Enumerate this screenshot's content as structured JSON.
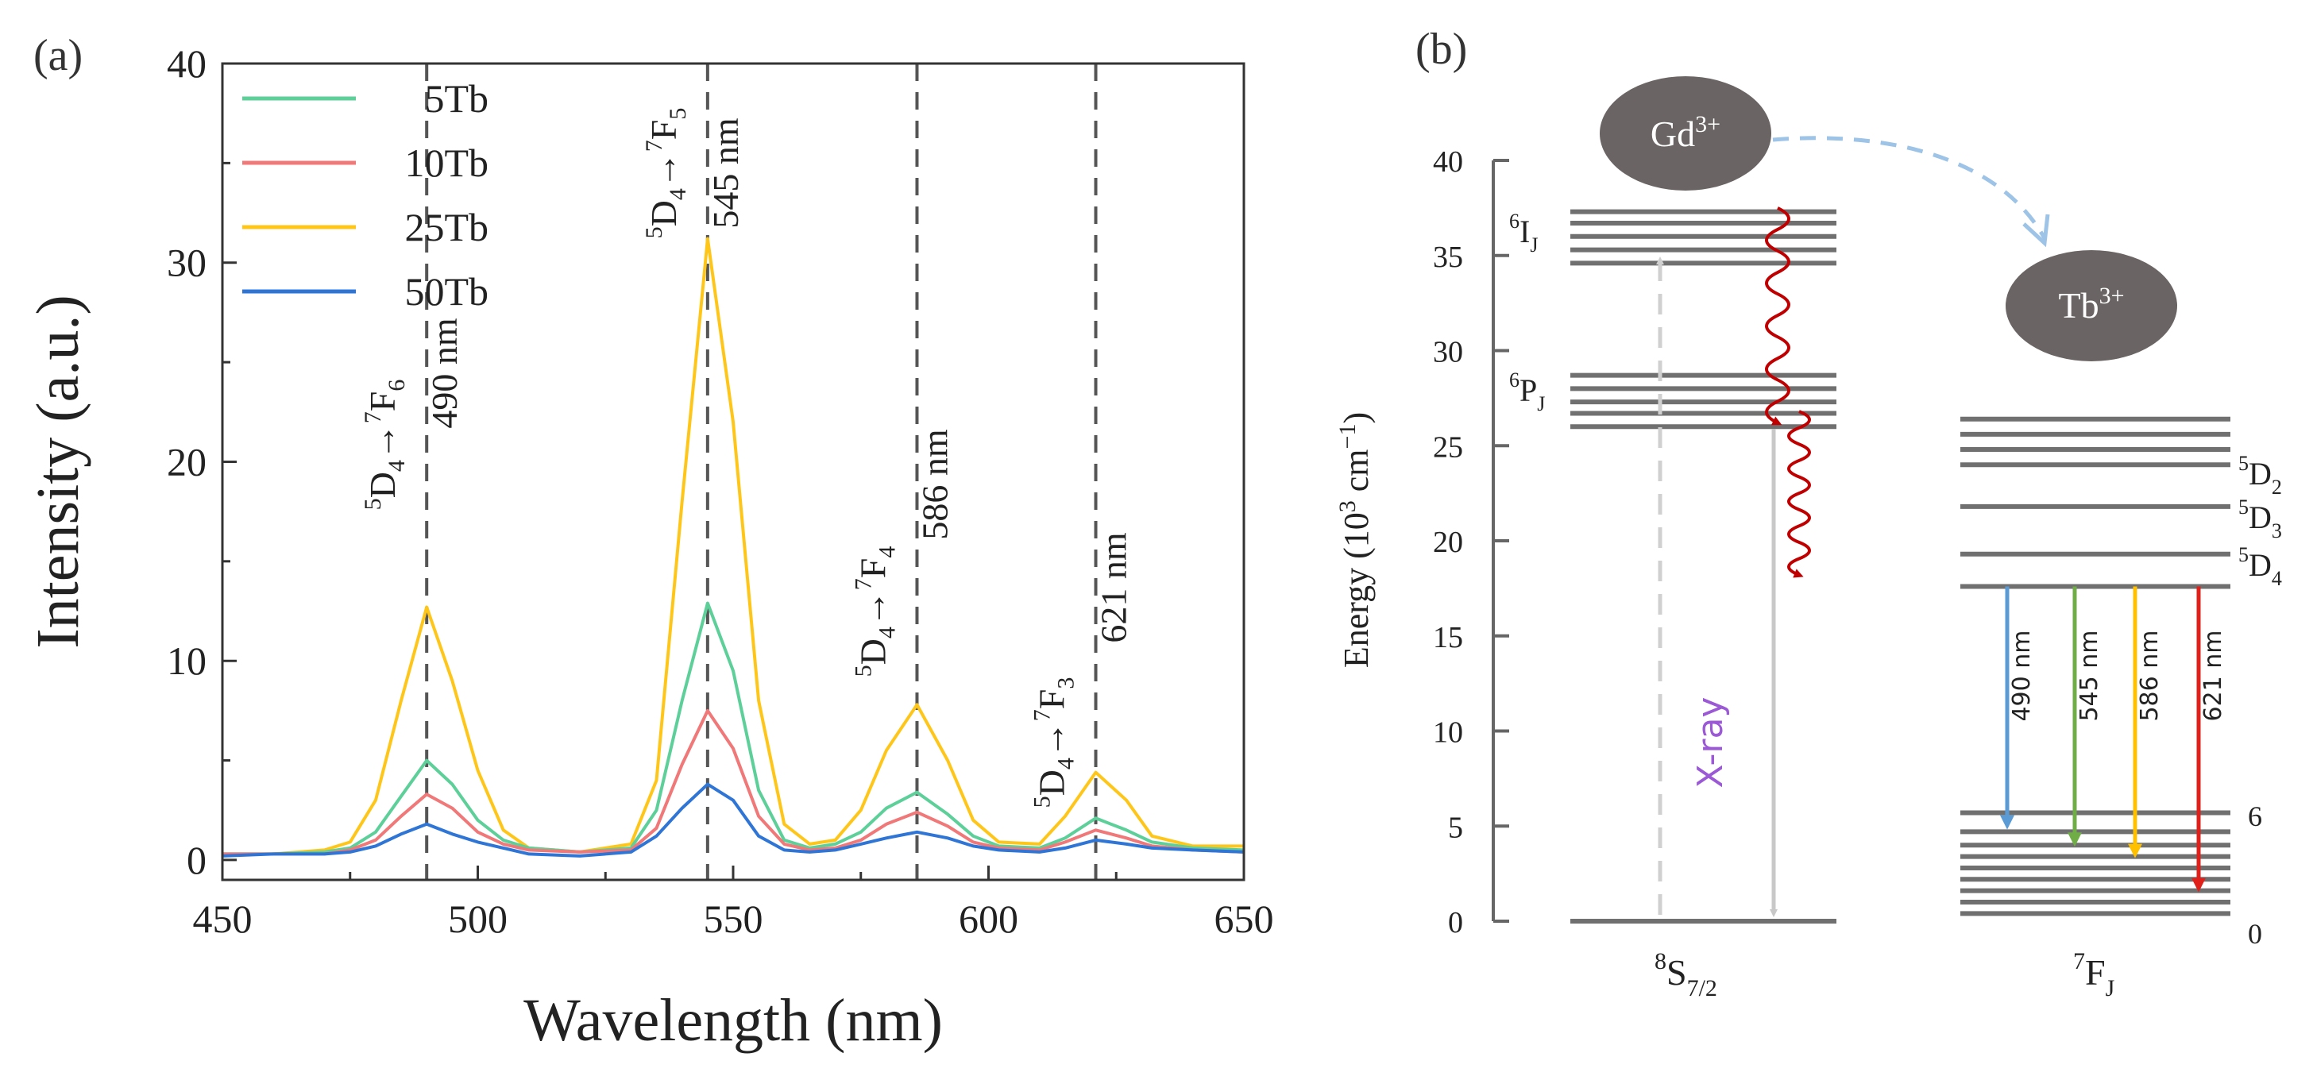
{
  "panel_a": {
    "label": "(a)",
    "legend": [
      "5Tb",
      "10Tb",
      "25Tb",
      "50Tb"
    ],
    "transitions": [
      {
        "wl": "490",
        "upper": "D",
        "upper_sup": "5",
        "upper_sub": "4",
        "lower": "F",
        "lower_sup": "7",
        "lower_sub": "6",
        "nm": "490 nm"
      },
      {
        "wl": "545",
        "upper": "D",
        "upper_sup": "5",
        "upper_sub": "4",
        "lower": "F",
        "lower_sup": "7",
        "lower_sub": "5",
        "nm": "545 nm"
      },
      {
        "wl": "586",
        "upper": "D",
        "upper_sup": "5",
        "upper_sub": "4",
        "lower": "F",
        "lower_sup": "7",
        "lower_sub": "4",
        "nm": "586 nm"
      },
      {
        "wl": "621",
        "upper": "D",
        "upper_sup": "5",
        "upper_sub": "4",
        "lower": "F",
        "lower_sup": "7",
        "lower_sub": "3",
        "nm": "621 nm"
      }
    ],
    "arrow_glyph": "→"
  },
  "panel_b": {
    "label": "(b)",
    "ylabel_main": "Energy (10",
    "ylabel_sup1": "3",
    "ylabel_mid": " cm",
    "ylabel_sup2": "−1",
    "ylabel_end": ")",
    "yticks": [
      "0",
      "5",
      "10",
      "15",
      "20",
      "25",
      "30",
      "35",
      "40"
    ],
    "gd": {
      "label": "Gd",
      "sup": "3+"
    },
    "tb": {
      "label": "Tb",
      "sup": "3+"
    },
    "gd_labels": {
      "I": {
        "sup": "6",
        "base": "I",
        "sub": "J"
      },
      "P": {
        "sup": "6",
        "base": "P",
        "sub": "J"
      },
      "S": {
        "sup": "8",
        "base": "S",
        "sub": "7/2"
      }
    },
    "tb_labels": {
      "D2": {
        "sup": "5",
        "base": "D",
        "sub": "2"
      },
      "D3": {
        "sup": "5",
        "base": "D",
        "sub": "3"
      },
      "D4": {
        "sup": "5",
        "base": "D",
        "sub": "4"
      },
      "F": {
        "sup": "7",
        "base": "F",
        "sub": "J"
      },
      "six": "6",
      "zero": "0"
    },
    "xray": "X-ray",
    "emissions": [
      {
        "label": "490 nm",
        "color": "#5b9bd5"
      },
      {
        "label": "545 nm",
        "color": "#70ad47"
      },
      {
        "label": "586 nm",
        "color": "#ffc000"
      },
      {
        "label": "621 nm",
        "color": "#e0201b"
      }
    ]
  },
  "chart_data": [
    {
      "type": "line",
      "title": "",
      "xlabel": "Wavelength (nm)",
      "ylabel": "Intensity (a.u.)",
      "xlim": [
        450,
        650
      ],
      "ylim": [
        -1,
        40
      ],
      "xticks": [
        450,
        500,
        550,
        600,
        650
      ],
      "yticks": [
        0,
        10,
        20,
        30,
        40
      ],
      "x": [
        450,
        460,
        470,
        475,
        480,
        485,
        490,
        495,
        500,
        505,
        510,
        520,
        530,
        535,
        540,
        545,
        550,
        555,
        560,
        565,
        570,
        575,
        580,
        586,
        592,
        597,
        602,
        610,
        615,
        621,
        627,
        632,
        640,
        650
      ],
      "series": [
        {
          "name": "5Tb",
          "color": "#5dd09a",
          "values": [
            0.3,
            0.3,
            0.4,
            0.6,
            1.4,
            3.2,
            5.0,
            3.8,
            2.0,
            1.0,
            0.6,
            0.4,
            0.6,
            2.5,
            8.0,
            12.9,
            9.5,
            3.5,
            1.0,
            0.6,
            0.8,
            1.4,
            2.6,
            3.4,
            2.3,
            1.2,
            0.7,
            0.6,
            1.1,
            2.1,
            1.5,
            0.9,
            0.6,
            0.5
          ]
        },
        {
          "name": "10Tb",
          "color": "#f07878",
          "values": [
            0.3,
            0.3,
            0.3,
            0.5,
            1.0,
            2.2,
            3.3,
            2.6,
            1.4,
            0.8,
            0.5,
            0.4,
            0.5,
            1.6,
            4.8,
            7.5,
            5.6,
            2.2,
            0.8,
            0.5,
            0.6,
            1.0,
            1.8,
            2.4,
            1.7,
            0.9,
            0.6,
            0.5,
            0.9,
            1.5,
            1.1,
            0.7,
            0.5,
            0.4
          ]
        },
        {
          "name": "25Tb",
          "color": "#ffc61a",
          "values": [
            0.3,
            0.3,
            0.5,
            0.9,
            3.0,
            8.0,
            12.7,
            9.0,
            4.5,
            1.5,
            0.6,
            0.4,
            0.8,
            4.0,
            18.0,
            31.2,
            22.0,
            8.0,
            1.8,
            0.8,
            1.0,
            2.5,
            5.5,
            7.8,
            5.0,
            2.0,
            0.9,
            0.8,
            2.2,
            4.4,
            3.0,
            1.2,
            0.7,
            0.7
          ]
        },
        {
          "name": "50Tb",
          "color": "#2e75d6",
          "values": [
            0.2,
            0.3,
            0.3,
            0.4,
            0.7,
            1.3,
            1.8,
            1.3,
            0.9,
            0.6,
            0.3,
            0.2,
            0.4,
            1.2,
            2.6,
            3.8,
            3.0,
            1.2,
            0.5,
            0.4,
            0.5,
            0.8,
            1.1,
            1.4,
            1.1,
            0.7,
            0.5,
            0.4,
            0.6,
            1.0,
            0.8,
            0.6,
            0.5,
            0.4
          ]
        }
      ],
      "reference_lines": [
        490,
        545,
        586,
        621
      ]
    },
    {
      "type": "diagram",
      "title": "",
      "ylabel": "Energy (10^3 cm^-1)",
      "ylim": [
        0,
        40
      ],
      "yticks": [
        0,
        5,
        10,
        15,
        20,
        25,
        30,
        35,
        40
      ],
      "gd_levels": {
        "6I_J": [
          34.6,
          35.3,
          36.0,
          36.7,
          37.3
        ],
        "6P_J": [
          26.0,
          26.7,
          27.3,
          28.0,
          28.7
        ],
        "8S_7/2": [
          0
        ]
      },
      "tb_levels": {
        "upper_manifold": [
          26.4,
          25.6,
          24.8,
          24.0
        ],
        "5D2": 21.8,
        "5D3": 19.3,
        "5D4": 17.6,
        "7F_J": [
          5.7,
          4.7,
          4.0,
          3.4,
          2.8,
          2.2,
          1.6,
          1.0,
          0.4
        ],
        "7F_6": 5.7,
        "7F_0": 0.4
      }
    }
  ]
}
